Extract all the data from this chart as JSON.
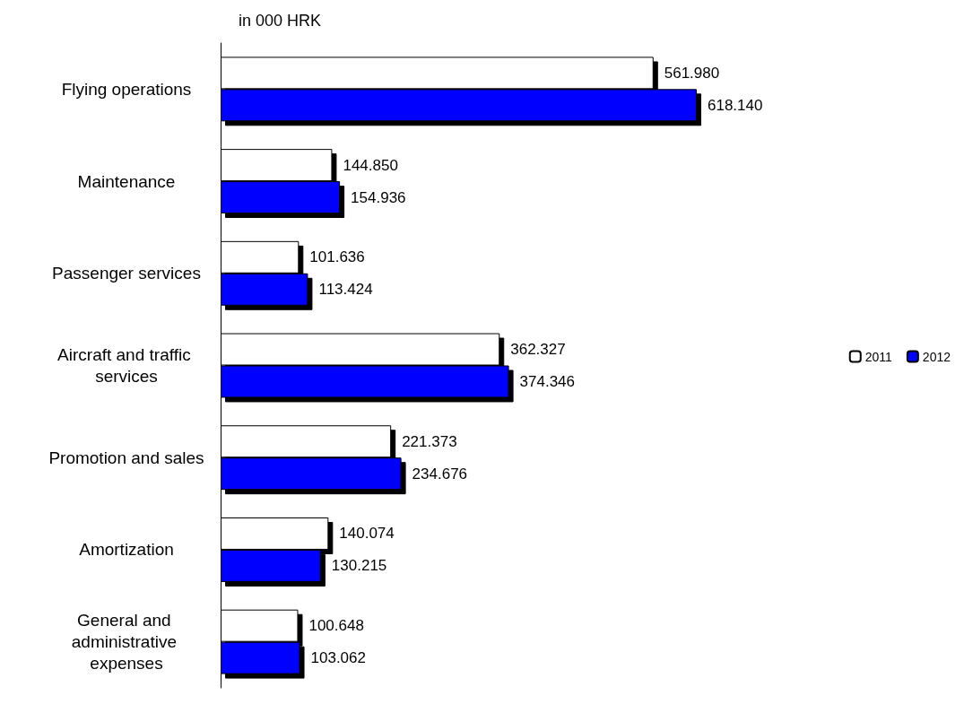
{
  "chart_data": {
    "type": "bar",
    "orientation": "horizontal",
    "categories": [
      "Flying operations",
      "Maintenance",
      "Passenger services",
      "Aircraft and traffic services",
      "Promotion and sales",
      "Amortization",
      "General and administrative expenses"
    ],
    "series": [
      {
        "name": "2011",
        "color": "#ffffff",
        "values": [
          561980,
          144850,
          101636,
          362327,
          221373,
          140074,
          100648
        ],
        "value_labels": [
          "561.980",
          "144.850",
          "101.636",
          "362.327",
          "221.373",
          "140.074",
          "100.648"
        ]
      },
      {
        "name": "2012",
        "color": "#0000ff",
        "values": [
          618140,
          154936,
          113424,
          374346,
          234676,
          130215,
          103062
        ],
        "value_labels": [
          "618.140",
          "154.936",
          "113.424",
          "374.346",
          "234.676",
          "130.215",
          "103.062"
        ]
      }
    ],
    "annotations": [
      "in 000 HRK"
    ],
    "legend": "right"
  }
}
